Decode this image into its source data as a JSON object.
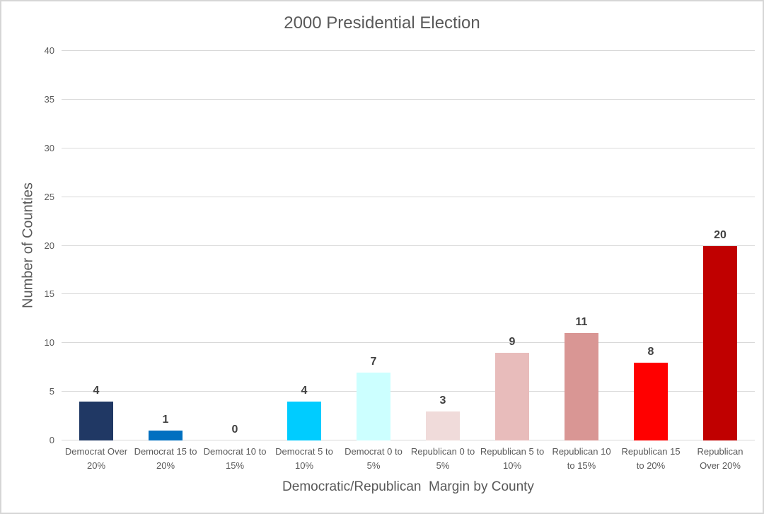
{
  "chart_data": {
    "type": "bar",
    "title": "2000 Presidential Election",
    "xlabel": "Democratic/Republican  Margin by County",
    "ylabel": "Number of Counties",
    "categories": [
      "Democrat Over 20%",
      "Democrat 15 to 20%",
      "Democrat 10 to 15%",
      "Democrat 5 to 10%",
      "Democrat 0 to 5%",
      "Republican 0 to 5%",
      "Republican 5 to 10%",
      "Republican 10 to 15%",
      "Republican 15 to 20%",
      "Republican Over 20%"
    ],
    "values": [
      4,
      1,
      0,
      4,
      7,
      3,
      9,
      11,
      8,
      20
    ],
    "bar_colors": [
      "#203864",
      "#0070C0",
      null,
      "#00CCFF",
      "#CCFFFF",
      "#F0DBDA",
      "#E8BCBB",
      "#D99694",
      "#FF0000",
      "#C00000"
    ],
    "data_labels": [
      4,
      1,
      0,
      4,
      7,
      3,
      9,
      11,
      8,
      20
    ],
    "ylim": [
      0,
      40
    ],
    "yticks": [
      0,
      5,
      10,
      15,
      20,
      25,
      30,
      35,
      40
    ],
    "grid": true,
    "legend": false
  },
  "colors": {
    "title_text": "#595959",
    "axis_text": "#595959",
    "data_label_text": "#404040",
    "gridline": "#D9D9D9",
    "frame_border": "#D6D6D6",
    "background": "#FFFFFF"
  }
}
